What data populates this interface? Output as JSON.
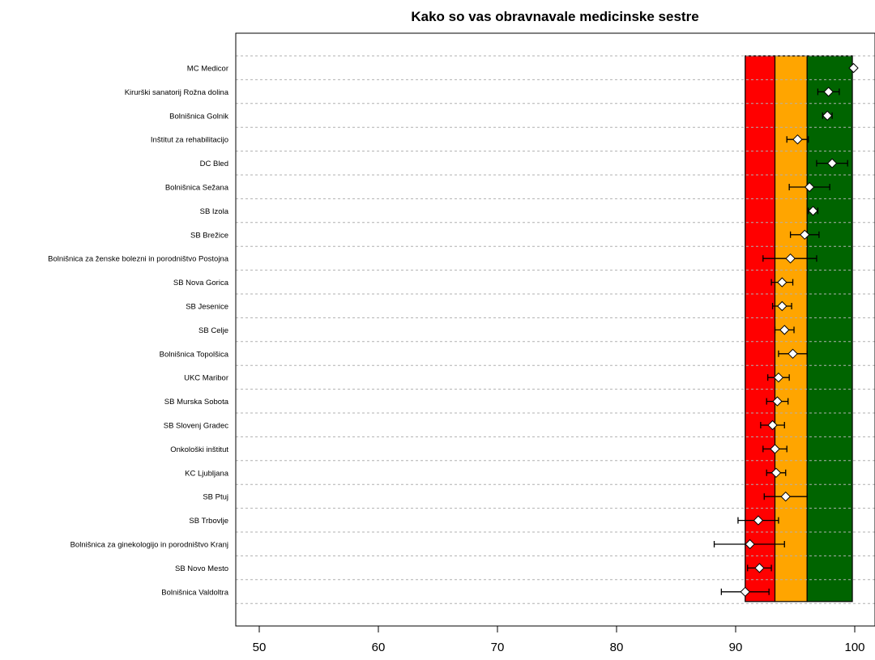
{
  "chart_data": {
    "type": "dot-errorbar",
    "title": "Kako so vas obravnavale medicinske sestre",
    "xlim": [
      48,
      100.5
    ],
    "x_ticks": [
      50,
      60,
      70,
      80,
      90,
      100
    ],
    "bands": [
      {
        "from": 90.8,
        "to": 93.3,
        "color": "#ff0000"
      },
      {
        "from": 93.3,
        "to": 96.0,
        "color": "#ffa500"
      },
      {
        "from": 96.0,
        "to": 99.8,
        "color": "#006400"
      }
    ],
    "categories": [
      "MC Medicor",
      "Kirurški sanatorij Rožna dolina",
      "Bolnišnica Golnik",
      "Inštitut za rehabilitacijo",
      "DC Bled",
      "Bolnišnica Sežana",
      "SB Izola",
      "SB Brežice",
      "Bolnišnica za ženske bolezni in porodništvo Postojna",
      "SB Nova Gorica",
      "SB Jesenice",
      "SB Celje",
      "Bolnišnica Topolšica",
      "UKC Maribor",
      "SB Murska Sobota",
      "SB Slovenj Gradec",
      "Onkološki inštitut",
      "KC Ljubljana",
      "SB Ptuj",
      "SB Trbovlje",
      "Bolnišnica za ginekologijo in porodništvo Kranj",
      "SB Novo Mesto",
      "Bolnišnica Valdoltra"
    ],
    "values": [
      99.9,
      97.8,
      97.7,
      95.2,
      98.1,
      96.2,
      96.5,
      95.8,
      94.6,
      93.9,
      93.9,
      94.1,
      94.8,
      93.6,
      93.5,
      93.1,
      93.3,
      93.4,
      94.2,
      91.9,
      91.2,
      92.0,
      90.8
    ],
    "lower": [
      99.9,
      96.9,
      97.3,
      94.3,
      96.8,
      94.5,
      96.1,
      94.6,
      92.3,
      93.0,
      93.1,
      93.3,
      93.6,
      92.7,
      92.6,
      92.1,
      92.3,
      92.6,
      92.4,
      90.2,
      88.2,
      91.0,
      88.8
    ],
    "upper": [
      99.9,
      98.7,
      98.1,
      96.1,
      99.4,
      97.9,
      96.9,
      97.0,
      96.8,
      94.8,
      94.7,
      94.9,
      96.0,
      94.5,
      94.4,
      94.1,
      94.3,
      94.2,
      96.0,
      93.6,
      94.1,
      93.0,
      92.8
    ]
  }
}
